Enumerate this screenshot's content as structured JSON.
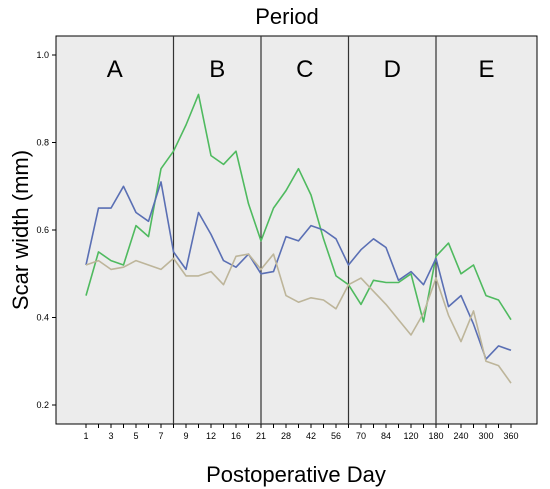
{
  "chart_data": {
    "type": "line",
    "title": "Period",
    "xlabel": "Postoperative Day",
    "ylabel": "Scar width (mm)",
    "ylim": [
      0.2,
      1.0
    ],
    "yticks": [
      "0.2",
      "0.4",
      "0.6",
      "0.8",
      "1.0"
    ],
    "x": [
      "1",
      "2",
      "3",
      "4",
      "5",
      "6",
      "7",
      "8",
      "9",
      "10",
      "12",
      "14",
      "16",
      "18",
      "21",
      "24",
      "28",
      "35",
      "42",
      "49",
      "56",
      "63",
      "70",
      "77",
      "84",
      "100",
      "120",
      "150",
      "180",
      "210",
      "240",
      "270",
      "300",
      "330",
      "360"
    ],
    "x_tick_labels": [
      "1",
      "3",
      "5",
      "7",
      "9",
      "12",
      "16",
      "21",
      "28",
      "42",
      "56",
      "70",
      "84",
      "120",
      "180",
      "240",
      "300",
      "360"
    ],
    "periods": [
      {
        "label": "A",
        "x_start": "1",
        "x_end": "8"
      },
      {
        "label": "B",
        "x_start": "8",
        "x_end": "21"
      },
      {
        "label": "C",
        "x_start": "21",
        "x_end": "63"
      },
      {
        "label": "D",
        "x_start": "63",
        "x_end": "180"
      },
      {
        "label": "E",
        "x_start": "180",
        "x_end": "360"
      }
    ],
    "grid": false,
    "background_color": "#ececec",
    "series": [
      {
        "color": "#4fba5f",
        "values": [
          0.45,
          0.55,
          0.53,
          0.52,
          0.61,
          0.585,
          0.74,
          0.78,
          0.84,
          0.91,
          0.77,
          0.75,
          0.78,
          0.66,
          0.575,
          0.65,
          0.69,
          0.74,
          0.68,
          0.58,
          0.495,
          0.475,
          0.43,
          0.485,
          0.48,
          0.48,
          0.5,
          0.39,
          0.54,
          0.57,
          0.5,
          0.52,
          0.45,
          0.44,
          0.395
        ]
      },
      {
        "color": "#5a6fb4",
        "values": [
          0.52,
          0.65,
          0.65,
          0.7,
          0.64,
          0.62,
          0.71,
          0.55,
          0.51,
          0.64,
          0.59,
          0.53,
          0.515,
          0.545,
          0.5,
          0.505,
          0.585,
          0.575,
          0.61,
          0.6,
          0.58,
          0.52,
          0.555,
          0.58,
          0.56,
          0.485,
          0.505,
          0.475,
          0.535,
          0.425,
          0.45,
          0.385,
          0.305,
          0.335,
          0.325
        ]
      },
      {
        "color": "#bdb59a",
        "values": [
          0.52,
          0.53,
          0.51,
          0.515,
          0.53,
          0.52,
          0.51,
          0.535,
          0.495,
          0.495,
          0.505,
          0.475,
          0.54,
          0.545,
          0.51,
          0.545,
          0.45,
          0.435,
          0.445,
          0.44,
          0.42,
          0.475,
          0.49,
          0.46,
          0.43,
          0.395,
          0.36,
          0.41,
          0.49,
          0.405,
          0.345,
          0.415,
          0.3,
          0.29,
          0.25
        ]
      }
    ]
  }
}
